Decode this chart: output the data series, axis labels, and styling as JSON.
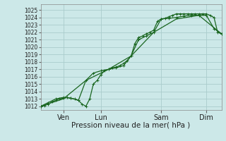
{
  "bg_color": "#cce8e8",
  "grid_color": "#aacccc",
  "line_color": "#1a6620",
  "xlabel": "Pression niveau de la mer( hPa )",
  "xlim": [
    0,
    8.0
  ],
  "ylim": [
    1011.5,
    1025.8
  ],
  "yticks": [
    1012,
    1013,
    1014,
    1015,
    1016,
    1017,
    1018,
    1019,
    1020,
    1021,
    1022,
    1023,
    1024,
    1025
  ],
  "xtick_positions": [
    1.0,
    2.67,
    5.33,
    7.33
  ],
  "xtick_labels": [
    "Ven",
    "Lun",
    "Sam",
    "Dim"
  ],
  "series1_x": [
    0.0,
    0.17,
    0.33,
    0.5,
    0.67,
    0.83,
    1.0,
    1.17,
    1.33,
    1.5,
    1.67,
    1.83,
    2.0,
    2.17,
    2.33,
    2.5,
    2.67,
    2.83,
    3.0,
    3.17,
    3.33,
    3.5,
    3.67,
    3.83,
    4.0,
    4.17,
    4.33,
    4.5,
    4.67,
    4.83,
    5.0,
    5.17,
    5.33,
    5.5,
    5.67,
    5.83,
    6.0,
    6.17,
    6.33,
    6.5,
    6.67,
    6.83,
    7.0,
    7.17,
    7.33,
    7.5,
    7.67,
    7.83,
    8.0
  ],
  "series1_y": [
    1012.0,
    1012.1,
    1012.3,
    1012.6,
    1012.8,
    1013.0,
    1013.1,
    1013.2,
    1013.1,
    1013.0,
    1012.8,
    1012.3,
    1012.0,
    1013.0,
    1015.0,
    1015.5,
    1016.3,
    1016.8,
    1017.0,
    1017.2,
    1017.3,
    1017.5,
    1017.8,
    1018.2,
    1018.8,
    1020.5,
    1021.3,
    1021.5,
    1021.8,
    1022.0,
    1022.3,
    1023.5,
    1023.8,
    1023.9,
    1024.1,
    1024.3,
    1024.5,
    1024.5,
    1024.5,
    1024.5,
    1024.5,
    1024.5,
    1024.5,
    1024.5,
    1024.5,
    1024.3,
    1024.0,
    1022.0,
    1021.8
  ],
  "series2_x": [
    0.0,
    0.33,
    0.67,
    1.0,
    1.33,
    1.67,
    2.0,
    2.33,
    2.67,
    3.0,
    3.33,
    3.67,
    4.0,
    4.33,
    4.67,
    5.0,
    5.33,
    5.67,
    6.0,
    6.33,
    6.67,
    7.0,
    7.33,
    7.67,
    8.0
  ],
  "series2_y": [
    1012.0,
    1012.5,
    1013.0,
    1013.2,
    1013.1,
    1012.8,
    1015.5,
    1016.5,
    1016.8,
    1017.0,
    1017.2,
    1017.5,
    1018.8,
    1021.0,
    1021.5,
    1022.0,
    1023.8,
    1023.9,
    1024.0,
    1024.2,
    1024.3,
    1024.3,
    1024.3,
    1022.5,
    1021.8
  ],
  "series3_x": [
    0.0,
    1.0,
    2.0,
    3.0,
    4.0,
    5.0,
    6.0,
    7.0,
    8.0
  ],
  "series3_y": [
    1012.0,
    1013.0,
    1015.5,
    1017.0,
    1018.8,
    1022.0,
    1023.8,
    1024.3,
    1021.8
  ],
  "markersize": 3.5,
  "linewidth": 0.9,
  "ylabel_fontsize": 5.5,
  "xlabel_fontsize": 7.5,
  "xtick_fontsize": 7.0
}
